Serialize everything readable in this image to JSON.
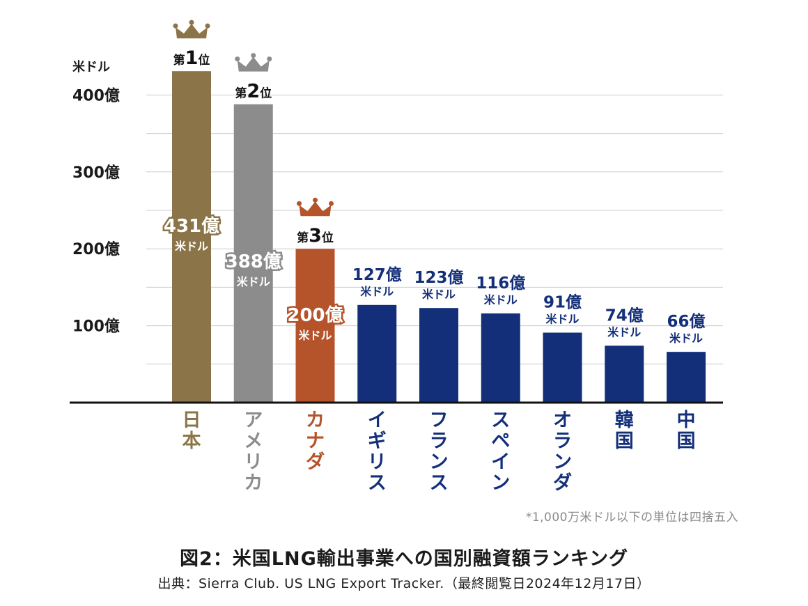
{
  "chart_data": {
    "type": "bar",
    "title": "図2：米国LNG輸出事業への国別融資額ランキング",
    "source": "出典：Sierra Club. US LNG Export Tracker.（最終閲覧日2024年12月17日）",
    "footnote": "*1,000万米ドル以下の単位は四捨五入",
    "unit_label": "米ドル",
    "value_suffix": "億",
    "value_unit": "米ドル",
    "ylim": [
      0,
      430
    ],
    "yticks": [
      {
        "value": 100,
        "label": "100億"
      },
      {
        "value": 200,
        "label": "200億"
      },
      {
        "value": 300,
        "label": "300億"
      },
      {
        "value": 400,
        "label": "400億"
      }
    ],
    "grid": true,
    "categories": [
      "日本",
      "アメリカ",
      "カナダ",
      "イギリス",
      "フランス",
      "スペイン",
      "オランダ",
      "韓国",
      "中国"
    ],
    "values": [
      431,
      388,
      200,
      127,
      123,
      116,
      91,
      74,
      66
    ],
    "value_labels": [
      "431億",
      "388億",
      "200億",
      "127億",
      "123億",
      "116億",
      "91億",
      "74億",
      "66億"
    ],
    "ranks": [
      {
        "index": 0,
        "prefix": "第",
        "number": "1",
        "suffix": "位"
      },
      {
        "index": 1,
        "prefix": "第",
        "number": "2",
        "suffix": "位"
      },
      {
        "index": 2,
        "prefix": "第",
        "number": "3",
        "suffix": "位"
      }
    ],
    "colors": [
      "#8b7548",
      "#8c8c8c",
      "#b5532b",
      "#142f7a",
      "#142f7a",
      "#142f7a",
      "#142f7a",
      "#142f7a",
      "#142f7a"
    ],
    "grid_color": "#cccccc",
    "axis_color": "#111111",
    "tick_label_color": "#1a1a1a"
  }
}
